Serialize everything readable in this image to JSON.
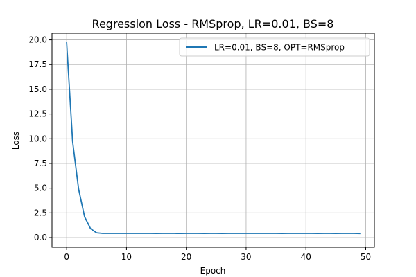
{
  "chart_data": {
    "type": "line",
    "title": "Regression Loss - RMSprop, LR=0.01, BS=8",
    "xlabel": "Epoch",
    "ylabel": "Loss",
    "xlim": [
      -2.45,
      51.45
    ],
    "ylim": [
      -0.98,
      20.67
    ],
    "xticks": [
      0,
      10,
      20,
      30,
      40,
      50
    ],
    "xtick_labels": [
      "0",
      "10",
      "20",
      "30",
      "40",
      "50"
    ],
    "yticks": [
      0,
      2.5,
      5,
      7.5,
      10,
      12.5,
      15,
      17.5,
      20
    ],
    "ytick_labels": [
      "0.0",
      "2.5",
      "5.0",
      "7.5",
      "10.0",
      "12.5",
      "15.0",
      "17.5",
      "20.0"
    ],
    "grid": true,
    "legend_position": "upper right",
    "series": [
      {
        "name": "LR=0.01, BS=8, OPT=RMSprop",
        "color": "#1f77b4",
        "x": [
          0,
          1,
          2,
          3,
          4,
          5,
          6,
          7,
          8,
          9,
          10,
          11,
          12,
          13,
          14,
          15,
          16,
          17,
          18,
          19,
          20,
          21,
          22,
          23,
          24,
          25,
          26,
          27,
          28,
          29,
          30,
          31,
          32,
          33,
          34,
          35,
          36,
          37,
          38,
          39,
          40,
          41,
          42,
          43,
          44,
          45,
          46,
          47,
          48,
          49
        ],
        "y": [
          19.7,
          9.7,
          4.9,
          2.1,
          0.9,
          0.48,
          0.42,
          0.42,
          0.42,
          0.42,
          0.42,
          0.43,
          0.42,
          0.42,
          0.42,
          0.41,
          0.42,
          0.42,
          0.42,
          0.41,
          0.42,
          0.42,
          0.42,
          0.41,
          0.42,
          0.42,
          0.41,
          0.42,
          0.42,
          0.43,
          0.42,
          0.42,
          0.42,
          0.42,
          0.42,
          0.42,
          0.41,
          0.42,
          0.42,
          0.42,
          0.42,
          0.42,
          0.41,
          0.42,
          0.42,
          0.41,
          0.42,
          0.42,
          0.42,
          0.41
        ]
      }
    ]
  }
}
